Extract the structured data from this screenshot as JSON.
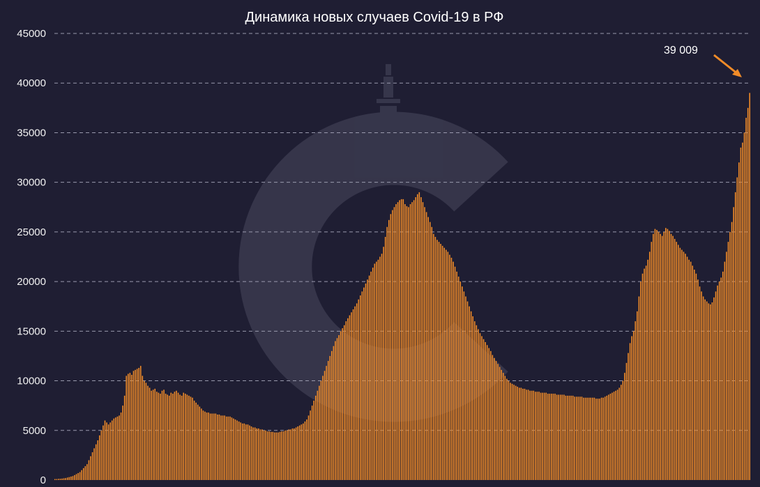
{
  "chart_data": {
    "type": "bar",
    "title": "Динамика новых случаев Covid-19 в РФ",
    "xlabel": "",
    "ylabel": "",
    "ylim": [
      0,
      45000
    ],
    "y_ticks": [
      "0",
      "5000",
      "10000",
      "15000",
      "20000",
      "25000",
      "30000",
      "35000",
      "40000",
      "45000"
    ],
    "grid": true,
    "legend": "none",
    "bar_color": "#f28c28",
    "annotation": {
      "text": "39 009",
      "value": 39009
    },
    "values": [
      100,
      100,
      120,
      130,
      150,
      180,
      200,
      250,
      300,
      350,
      400,
      500,
      600,
      700,
      800,
      1000,
      1200,
      1400,
      1600,
      2000,
      2400,
      2800,
      3200,
      3600,
      4000,
      4500,
      5000,
      5500,
      6000,
      5800,
      5600,
      5800,
      6000,
      6200,
      6300,
      6400,
      6500,
      6800,
      7500,
      8500,
      10500,
      10700,
      10800,
      10600,
      11000,
      11100,
      11200,
      11300,
      11500,
      10500,
      10000,
      9800,
      9500,
      9300,
      9000,
      9100,
      9200,
      8900,
      8800,
      8700,
      9000,
      9100,
      8700,
      8600,
      8500,
      8800,
      8700,
      8900,
      9000,
      8800,
      8600,
      8500,
      8800,
      8700,
      8600,
      8500,
      8400,
      8300,
      8000,
      7800,
      7600,
      7400,
      7200,
      7000,
      6900,
      6800,
      6800,
      6700,
      6700,
      6700,
      6700,
      6600,
      6600,
      6500,
      6500,
      6500,
      6400,
      6400,
      6400,
      6300,
      6200,
      6100,
      6000,
      5900,
      5800,
      5700,
      5700,
      5600,
      5600,
      5500,
      5400,
      5300,
      5300,
      5200,
      5200,
      5100,
      5100,
      5000,
      5000,
      4900,
      4900,
      4850,
      4850,
      4800,
      4800,
      4800,
      4850,
      4900,
      4900,
      5000,
      5000,
      5100,
      5100,
      5200,
      5200,
      5300,
      5400,
      5500,
      5600,
      5700,
      5900,
      6100,
      6500,
      7000,
      7500,
      8000,
      8500,
      9000,
      9500,
      10000,
      10500,
      11000,
      11500,
      12000,
      12500,
      13000,
      13500,
      14000,
      14300,
      14600,
      15000,
      15300,
      15600,
      16000,
      16300,
      16600,
      16900,
      17200,
      17500,
      17800,
      18200,
      18600,
      19000,
      19400,
      19800,
      20200,
      20600,
      21000,
      21400,
      21800,
      22000,
      22200,
      22500,
      22800,
      23500,
      24500,
      25500,
      26200,
      26800,
      27200,
      27500,
      27800,
      28000,
      28200,
      28300,
      28300,
      27800,
      27600,
      27500,
      27800,
      28000,
      28200,
      28500,
      28800,
      29000,
      28500,
      28000,
      27500,
      27000,
      26500,
      26000,
      25500,
      24800,
      24500,
      24200,
      24000,
      23800,
      23600,
      23400,
      23200,
      23000,
      22700,
      22400,
      22000,
      21500,
      21000,
      20500,
      20000,
      19500,
      19000,
      18500,
      18000,
      17500,
      17000,
      16500,
      16000,
      15600,
      15200,
      14800,
      14500,
      14200,
      13900,
      13600,
      13300,
      13000,
      12600,
      12300,
      12000,
      11700,
      11400,
      11100,
      10800,
      10500,
      10200,
      10000,
      9800,
      9700,
      9600,
      9500,
      9400,
      9300,
      9300,
      9200,
      9200,
      9100,
      9100,
      9000,
      9000,
      9000,
      8900,
      8900,
      8900,
      8800,
      8800,
      8800,
      8800,
      8700,
      8700,
      8700,
      8700,
      8700,
      8600,
      8600,
      8600,
      8600,
      8600,
      8500,
      8500,
      8500,
      8500,
      8500,
      8400,
      8400,
      8400,
      8400,
      8400,
      8300,
      8300,
      8300,
      8300,
      8300,
      8300,
      8300,
      8200,
      8200,
      8200,
      8300,
      8300,
      8400,
      8500,
      8600,
      8700,
      8800,
      8900,
      9000,
      9100,
      9300,
      9600,
      10000,
      10800,
      11800,
      12800,
      13800,
      14500,
      15000,
      16000,
      17000,
      18500,
      20000,
      20800,
      21300,
      21600,
      22200,
      23000,
      24000,
      24800,
      25300,
      25200,
      25000,
      24800,
      24600,
      25000,
      25400,
      25300,
      25100,
      24800,
      24600,
      24300,
      24000,
      23700,
      23400,
      23200,
      23000,
      22800,
      22500,
      22200,
      22000,
      21600,
      21200,
      20800,
      20200,
      19500,
      19000,
      18500,
      18200,
      18000,
      17800,
      17700,
      17900,
      18400,
      19000,
      19600,
      20000,
      20400,
      21000,
      22000,
      23000,
      24000,
      25000,
      26000,
      27500,
      29000,
      30500,
      32000,
      33500,
      34000,
      35000,
      36500,
      37500,
      39009
    ]
  }
}
